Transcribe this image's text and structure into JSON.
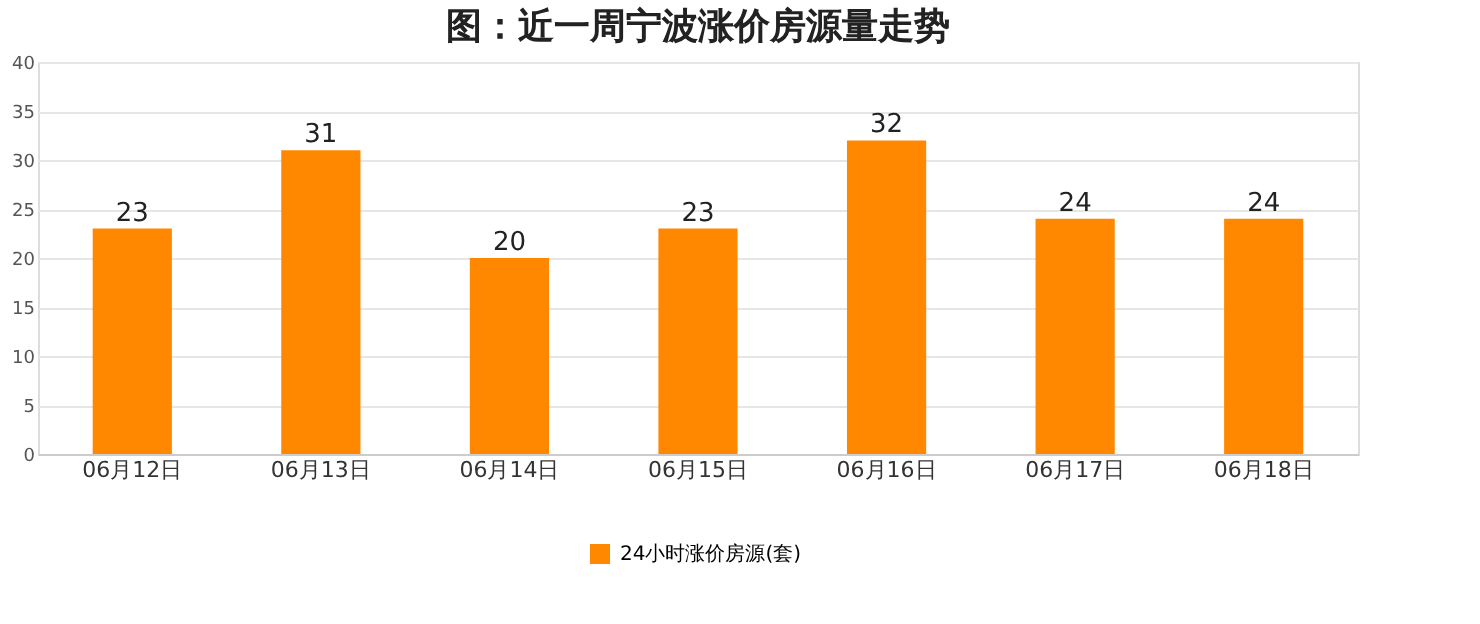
{
  "chart_data": {
    "type": "bar",
    "title": "图：近一周宁波涨价房源量走势",
    "categories": [
      "06月12日",
      "06月13日",
      "06月14日",
      "06月15日",
      "06月16日",
      "06月17日",
      "06月18日"
    ],
    "series": [
      {
        "name": "24小时涨价房源(套)",
        "color": "#ff8800",
        "values": [
          23,
          31,
          20,
          23,
          32,
          24,
          24
        ]
      }
    ],
    "ylim": [
      0,
      40
    ],
    "yticks": [
      0,
      5,
      10,
      15,
      20,
      25,
      30,
      35,
      40
    ],
    "grid": "y",
    "legend": "bottom",
    "data_labels": true
  }
}
